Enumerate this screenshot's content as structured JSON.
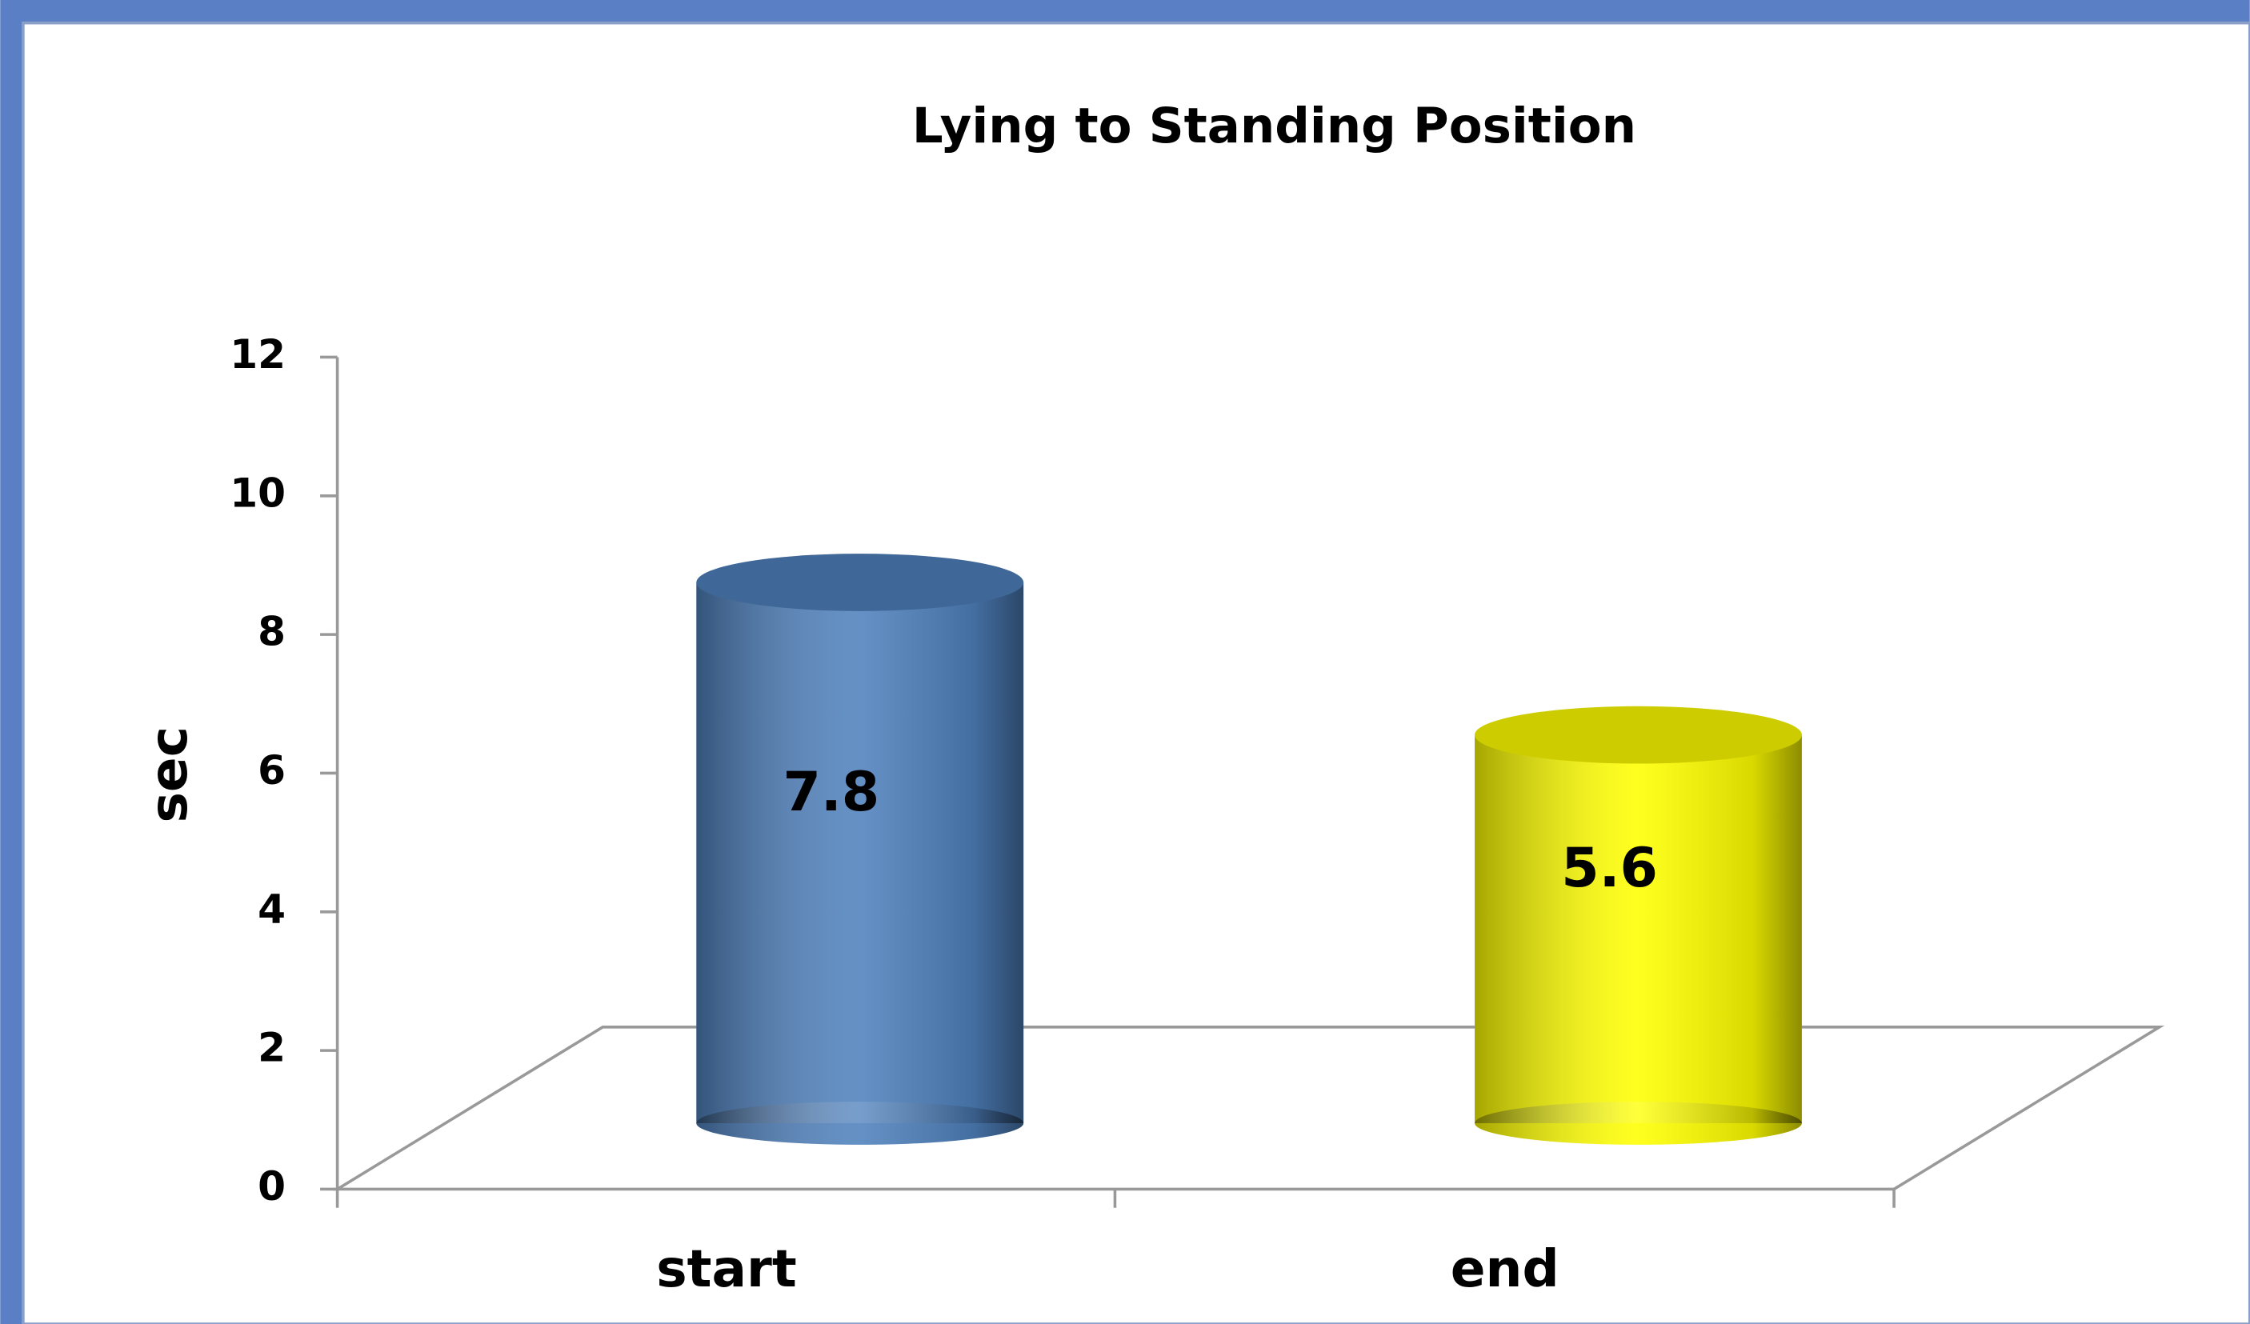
{
  "chart_data": {
    "type": "bar",
    "title": "Lying to Standing Position",
    "y_label": "sec",
    "categories": [
      "start",
      "end"
    ],
    "values": [
      7.8,
      5.6
    ],
    "colors": [
      "#4f81bd",
      "#ffff00"
    ],
    "ylim": [
      0,
      12
    ],
    "yticks": [
      0,
      2,
      4,
      6,
      8,
      10,
      12
    ],
    "grid": false
  }
}
